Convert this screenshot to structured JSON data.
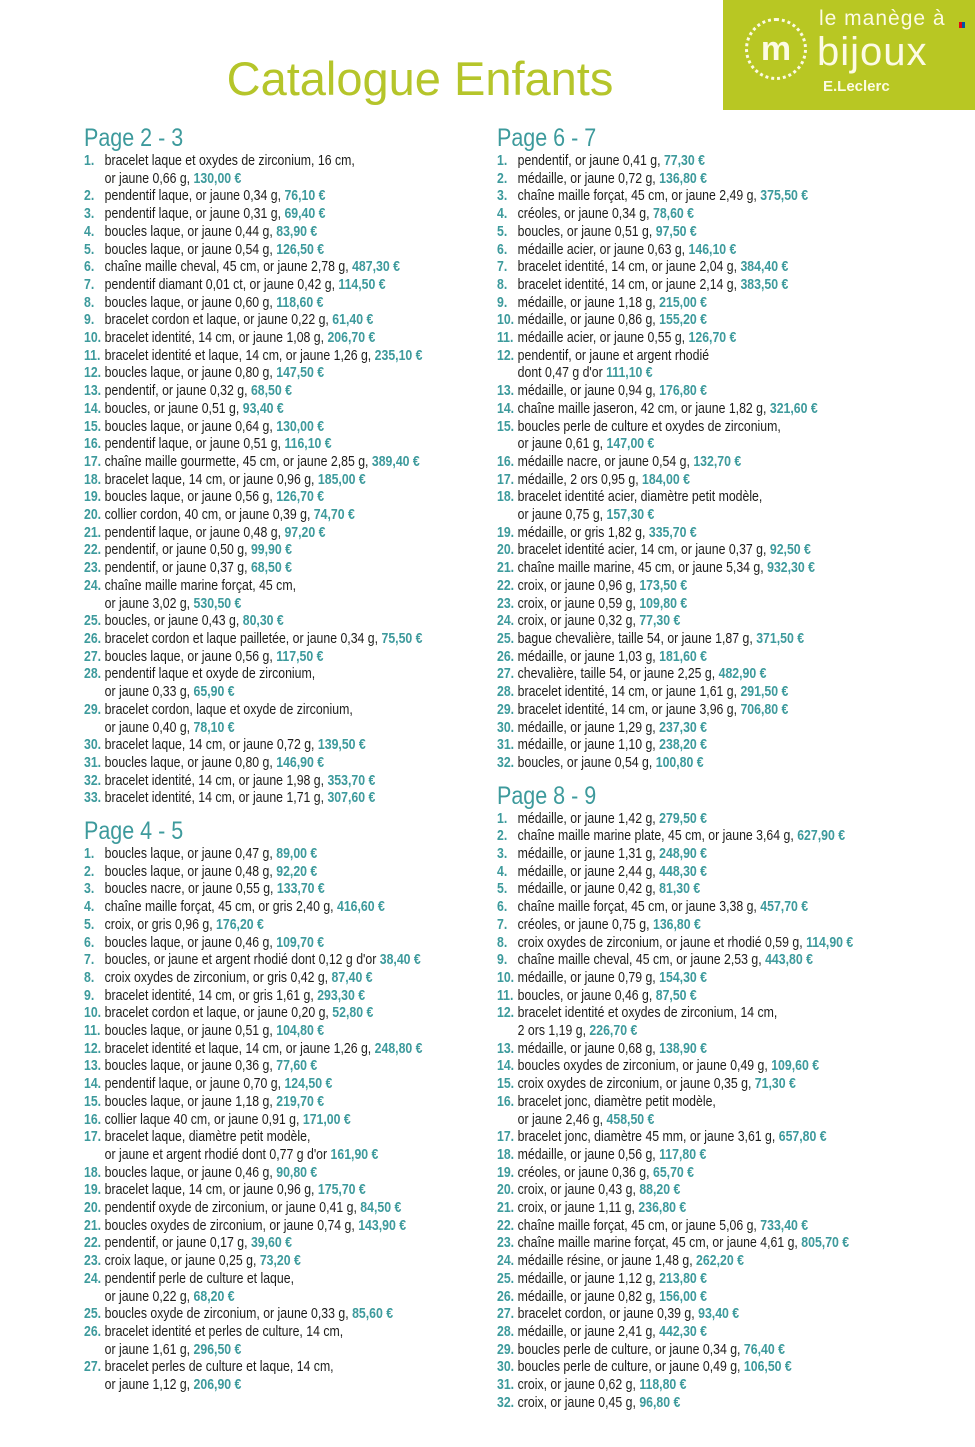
{
  "logo": {
    "line1": "le manège à",
    "line2": "bijoux",
    "line3": "E.Leclerc",
    "emblem": "m",
    "color": "#b8c723"
  },
  "title": "Catalogue Enfants",
  "columns": [
    [
      {
        "heading": "Page 2 - 3",
        "items": [
          {
            "n": "1.",
            "text": "bracelet laque et oxydes de zirconium, 16 cm,",
            "cont": "or jaune 0,66 g,",
            "price": "130,00 €"
          },
          {
            "n": "2.",
            "text": "pendentif laque, or jaune 0,34 g,",
            "price": "76,10 €"
          },
          {
            "n": "3.",
            "text": "pendentif laque, or jaune 0,31 g,",
            "price": "69,40 €"
          },
          {
            "n": "4.",
            "text": "boucles laque, or jaune 0,44 g,",
            "price": "83,90 €"
          },
          {
            "n": "5.",
            "text": "boucles laque, or jaune 0,54 g,",
            "price": "126,50 €"
          },
          {
            "n": "6.",
            "text": "chaîne maille cheval, 45 cm, or jaune 2,78 g,",
            "price": "487,30 €"
          },
          {
            "n": "7.",
            "text": "pendentif diamant 0,01 ct, or jaune 0,42 g,",
            "price": "114,50 €"
          },
          {
            "n": "8.",
            "text": "boucles laque, or jaune 0,60 g,",
            "price": "118,60 €"
          },
          {
            "n": "9.",
            "text": "bracelet cordon et laque, or jaune 0,22 g,",
            "price": "61,40 €"
          },
          {
            "n": "10.",
            "text": "bracelet identité, 14 cm, or jaune 1,08 g,",
            "price": "206,70 €"
          },
          {
            "n": "11.",
            "text": "bracelet identité et laque, 14 cm, or jaune 1,26 g,",
            "price": "235,10 €"
          },
          {
            "n": "12.",
            "text": "boucles laque, or jaune 0,80 g,",
            "price": "147,50 €"
          },
          {
            "n": "13.",
            "text": "pendentif, or jaune 0,32 g,",
            "price": "68,50 €"
          },
          {
            "n": "14.",
            "text": "boucles, or jaune 0,51 g,",
            "price": "93,40 €"
          },
          {
            "n": "15.",
            "text": "boucles laque, or jaune 0,64 g,",
            "price": "130,00 €"
          },
          {
            "n": "16.",
            "text": "pendentif laque, or jaune 0,51 g,",
            "price": "116,10 €"
          },
          {
            "n": "17.",
            "text": "chaîne maille gourmette, 45 cm, or jaune 2,85 g,",
            "price": "389,40 €"
          },
          {
            "n": "18.",
            "text": "bracelet laque, 14 cm, or jaune 0,96 g,",
            "price": "185,00 €"
          },
          {
            "n": "19.",
            "text": "boucles laque, or jaune 0,56 g,",
            "price": "126,70 €"
          },
          {
            "n": "20.",
            "text": "collier cordon, 40 cm, or jaune 0,39 g,",
            "price": "74,70 €"
          },
          {
            "n": "21.",
            "text": "pendentif laque, or jaune 0,48 g,",
            "price": "97,20 €"
          },
          {
            "n": "22.",
            "text": "pendentif, or jaune 0,50 g,",
            "price": "99,90 €"
          },
          {
            "n": "23.",
            "text": "pendentif, or jaune 0,37 g,",
            "price": "68,50 €"
          },
          {
            "n": "24.",
            "text": "chaîne maille marine forçat, 45 cm,",
            "cont": "or jaune 3,02 g,",
            "price": "530,50 €"
          },
          {
            "n": "25.",
            "text": "boucles, or jaune 0,43 g,",
            "price": "80,30 €"
          },
          {
            "n": "26.",
            "text": "bracelet cordon et laque pailletée, or jaune 0,34 g,",
            "price": "75,50 €"
          },
          {
            "n": "27.",
            "text": "boucles laque, or jaune 0,56 g,",
            "price": "117,50 €"
          },
          {
            "n": "28.",
            "text": "pendentif laque et oxyde de zirconium,",
            "cont": "or jaune 0,33 g,",
            "price": "65,90 €"
          },
          {
            "n": "29.",
            "text": "bracelet cordon, laque et oxyde de zirconium,",
            "cont": "or jaune 0,40 g,",
            "price": "78,10 €"
          },
          {
            "n": "30.",
            "text": "bracelet laque, 14 cm, or jaune 0,72 g,",
            "price": "139,50 €"
          },
          {
            "n": "31.",
            "text": "boucles laque, or jaune 0,80 g,",
            "price": "146,90 €"
          },
          {
            "n": "32.",
            "text": "bracelet identité, 14 cm, or jaune 1,98 g,",
            "price": "353,70 €"
          },
          {
            "n": "33.",
            "text": "bracelet identité, 14 cm, or jaune 1,71 g,",
            "price": "307,60 €"
          }
        ]
      },
      {
        "heading": "Page 4 - 5",
        "items": [
          {
            "n": "1.",
            "text": "boucles laque, or jaune 0,47 g,",
            "price": "89,00 €"
          },
          {
            "n": "2.",
            "text": "boucles laque, or jaune 0,48 g,",
            "price": "92,20 €"
          },
          {
            "n": "3.",
            "text": "boucles nacre, or jaune 0,55 g,",
            "price": "133,70 €"
          },
          {
            "n": "4.",
            "text": "chaîne maille forçat, 45 cm, or gris 2,40 g,",
            "price": "416,60 €"
          },
          {
            "n": "5.",
            "text": "croix, or gris 0,96 g,",
            "price": "176,20 €"
          },
          {
            "n": "6.",
            "text": "boucles laque, or jaune 0,46 g,",
            "price": "109,70 €"
          },
          {
            "n": "7.",
            "text": "boucles, or jaune et argent rhodié dont 0,12 g d'or",
            "price": "38,40 €"
          },
          {
            "n": "8.",
            "text": "croix oxydes de zirconium, or gris 0,42 g,",
            "price": "87,40 €"
          },
          {
            "n": "9.",
            "text": "bracelet identité, 14 cm, or gris 1,61 g,",
            "price": "293,30 €"
          },
          {
            "n": "10.",
            "text": "bracelet cordon et laque, or jaune 0,20 g,",
            "price": "52,80 €"
          },
          {
            "n": "11.",
            "text": "boucles laque, or jaune 0,51 g,",
            "price": "104,80 €"
          },
          {
            "n": "12.",
            "text": "bracelet identité et laque, 14 cm, or jaune 1,26 g,",
            "price": "248,80 €"
          },
          {
            "n": "13.",
            "text": "boucles laque, or jaune 0,36 g,",
            "price": "77,60 €"
          },
          {
            "n": "14.",
            "text": "pendentif laque, or jaune 0,70 g,",
            "price": "124,50 €"
          },
          {
            "n": "15.",
            "text": "boucles laque, or jaune 1,18 g,",
            "price": "219,70 €"
          },
          {
            "n": "16.",
            "text": "collier laque 40 cm, or jaune 0,91 g,",
            "price": "171,00 €"
          },
          {
            "n": "17.",
            "text": "bracelet laque, diamètre petit modèle,",
            "cont": "or jaune et argent rhodié dont 0,77 g d'or",
            "price": "161,90 €"
          },
          {
            "n": "18.",
            "text": "boucles laque, or jaune 0,46 g,",
            "price": "90,80 €"
          },
          {
            "n": "19.",
            "text": "bracelet laque, 14 cm, or jaune 0,96 g,",
            "price": "175,70 €"
          },
          {
            "n": "20.",
            "text": "pendentif oxyde de zirconium, or jaune 0,41 g,",
            "price": "84,50 €"
          },
          {
            "n": "21.",
            "text": "boucles oxydes de zirconium, or jaune 0,74 g,",
            "price": "143,90 €"
          },
          {
            "n": "22.",
            "text": "pendentif, or jaune 0,17 g,",
            "price": "39,60 €"
          },
          {
            "n": "23.",
            "text": "croix laque, or jaune 0,25 g,",
            "price": "73,20 €"
          },
          {
            "n": "24.",
            "text": "pendentif perle de culture et laque,",
            "cont": "or jaune 0,22 g,",
            "price": "68,20 €"
          },
          {
            "n": "25.",
            "text": "boucles oxyde de zirconium, or jaune 0,33 g,",
            "price": "85,60 €"
          },
          {
            "n": "26.",
            "text": "bracelet identité et perles de culture, 14 cm,",
            "cont": "or jaune 1,61 g,",
            "price": "296,50 €"
          },
          {
            "n": "27.",
            "text": "bracelet perles de culture et laque, 14 cm,",
            "cont": "or jaune 1,12 g,",
            "price": "206,90 €"
          }
        ]
      }
    ],
    [
      {
        "heading": "Page 6 - 7",
        "items": [
          {
            "n": "1.",
            "text": "pendentif, or jaune 0,41 g,",
            "price": "77,30 €"
          },
          {
            "n": "2.",
            "text": "médaille, or jaune 0,72 g,",
            "price": "136,80 €"
          },
          {
            "n": "3.",
            "text": "chaîne maille forçat, 45 cm, or jaune 2,49 g,",
            "price": "375,50 €"
          },
          {
            "n": "4.",
            "text": "créoles, or jaune 0,34 g,",
            "price": "78,60 €"
          },
          {
            "n": "5.",
            "text": "boucles, or jaune 0,51 g,",
            "price": "97,50 €"
          },
          {
            "n": "6.",
            "text": "médaille acier, or jaune 0,63 g,",
            "price": "146,10 €"
          },
          {
            "n": "7.",
            "text": "bracelet identité, 14 cm, or jaune 2,04 g,",
            "price": "384,40 €"
          },
          {
            "n": "8.",
            "text": "bracelet identité, 14 cm, or jaune 2,14 g,",
            "price": "383,50 €"
          },
          {
            "n": "9.",
            "text": "médaille, or jaune 1,18 g,",
            "price": "215,00 €"
          },
          {
            "n": "10.",
            "text": "médaille, or jaune 0,86 g,",
            "price": "155,20 €"
          },
          {
            "n": "11.",
            "text": "médaille acier, or jaune 0,55 g,",
            "price": "126,70 €"
          },
          {
            "n": "12.",
            "text": "pendentif, or jaune et argent rhodié",
            "cont": "dont 0,47 g d'or",
            "price": "111,10 €"
          },
          {
            "n": "13.",
            "text": "médaille, or jaune 0,94 g,",
            "price": "176,80 €"
          },
          {
            "n": "14.",
            "text": "chaîne maille jaseron, 42 cm, or jaune 1,82 g,",
            "price": "321,60 €"
          },
          {
            "n": "15.",
            "text": "boucles perle de culture et oxydes de zirconium,",
            "cont": "or jaune 0,61 g,",
            "price": "147,00 €"
          },
          {
            "n": "16.",
            "text": "médaille nacre, or jaune 0,54 g,",
            "price": "132,70 €"
          },
          {
            "n": "17.",
            "text": "médaille, 2 ors 0,95 g,",
            "price": "184,00 €"
          },
          {
            "n": "18.",
            "text": "bracelet identité acier, diamètre petit modèle,",
            "cont": "or jaune 0,75 g,",
            "price": "157,30 €"
          },
          {
            "n": "19.",
            "text": "médaille, or gris 1,82 g,",
            "price": "335,70 €"
          },
          {
            "n": "20.",
            "text": "bracelet identité acier, 14 cm, or jaune 0,37 g,",
            "price": "92,50 €"
          },
          {
            "n": "21.",
            "text": "chaîne maille marine, 45 cm, or jaune 5,34 g,",
            "price": "932,30 €"
          },
          {
            "n": "22.",
            "text": "croix, or jaune 0,96 g,",
            "price": "173,50 €"
          },
          {
            "n": "23.",
            "text": "croix, or jaune 0,59 g,",
            "price": "109,80 €"
          },
          {
            "n": "24.",
            "text": "croix, or jaune 0,32 g,",
            "price": "77,30 €"
          },
          {
            "n": "25.",
            "text": "bague chevalière, taille 54, or jaune 1,87 g,",
            "price": "371,50 €"
          },
          {
            "n": "26.",
            "text": "médaille, or jaune 1,03 g,",
            "price": "181,60 €"
          },
          {
            "n": "27.",
            "text": "chevalière, taille 54, or jaune 2,25 g,",
            "price": "482,90 €"
          },
          {
            "n": "28.",
            "text": "bracelet identité, 14 cm, or jaune 1,61 g,",
            "price": "291,50 €"
          },
          {
            "n": "29.",
            "text": "bracelet identité, 14 cm, or jaune 3,96 g,",
            "price": "706,80 €"
          },
          {
            "n": "30.",
            "text": "médaille, or jaune 1,29 g,",
            "price": "237,30 €"
          },
          {
            "n": "31.",
            "text": "médaille, or jaune 1,10 g,",
            "price": "238,20 €"
          },
          {
            "n": "32.",
            "text": "boucles, or jaune 0,54 g,",
            "price": "100,80 €"
          }
        ]
      },
      {
        "heading": "Page 8 - 9",
        "items": [
          {
            "n": "1.",
            "text": "médaille, or jaune 1,42 g,",
            "price": "279,50 €"
          },
          {
            "n": "2.",
            "text": "chaîne maille marine plate, 45 cm, or jaune 3,64 g,",
            "price": "627,90 €"
          },
          {
            "n": "3.",
            "text": "médaille, or jaune 1,31 g,",
            "price": "248,90 €"
          },
          {
            "n": "4.",
            "text": "médaille, or jaune 2,44 g,",
            "price": "448,30 €"
          },
          {
            "n": "5.",
            "text": "médaille, or jaune 0,42 g,",
            "price": "81,30 €"
          },
          {
            "n": "6.",
            "text": "chaîne maille forçat, 45 cm, or jaune 3,38 g,",
            "price": "457,70 €"
          },
          {
            "n": "7.",
            "text": "créoles, or jaune 0,75 g,",
            "price": "136,80 €"
          },
          {
            "n": "8.",
            "text": "croix oxydes de zirconium, or jaune et rhodié 0,59 g,",
            "price": "114,90 €"
          },
          {
            "n": "9.",
            "text": "chaîne maille cheval, 45 cm, or jaune 2,53 g,",
            "price": "443,80 €"
          },
          {
            "n": "10.",
            "text": "médaille, or jaune 0,79 g,",
            "price": "154,30 €"
          },
          {
            "n": "11.",
            "text": "boucles, or jaune 0,46 g,",
            "price": "87,50 €"
          },
          {
            "n": "12.",
            "text": "bracelet identité et oxydes de zirconium, 14 cm,",
            "cont": "2 ors 1,19 g,",
            "price": "226,70 €"
          },
          {
            "n": "13.",
            "text": "médaille, or jaune 0,68 g,",
            "price": "138,90 €"
          },
          {
            "n": "14.",
            "text": "boucles oxydes de zirconium, or jaune 0,49 g,",
            "price": "109,60 €"
          },
          {
            "n": "15.",
            "text": "croix oxydes de zirconium, or jaune 0,35 g,",
            "price": "71,30 €"
          },
          {
            "n": "16.",
            "text": "bracelet jonc, diamètre petit modèle,",
            "cont": "or jaune 2,46 g,",
            "price": "458,50 €"
          },
          {
            "n": "17.",
            "text": "bracelet jonc, diamètre 45 mm, or jaune 3,61 g,",
            "price": "657,80 €"
          },
          {
            "n": "18.",
            "text": "médaille, or jaune 0,56 g,",
            "price": "117,80 €"
          },
          {
            "n": "19.",
            "text": "créoles, or jaune 0,36 g,",
            "price": "65,70 €"
          },
          {
            "n": "20.",
            "text": "croix, or jaune 0,43 g,",
            "price": "88,20 €"
          },
          {
            "n": "21.",
            "text": "croix, or jaune 1,11 g,",
            "price": "236,80 €"
          },
          {
            "n": "22.",
            "text": "chaîne maille forçat, 45 cm, or jaune 5,06 g,",
            "price": "733,40 €"
          },
          {
            "n": "23.",
            "text": "chaîne maille marine forçat, 45 cm, or jaune 4,61 g,",
            "price": "805,70 €"
          },
          {
            "n": "24.",
            "text": "médaille résine, or jaune 1,48 g,",
            "price": "262,20 €"
          },
          {
            "n": "25.",
            "text": "médaille, or jaune 1,12 g,",
            "price": "213,80 €"
          },
          {
            "n": "26.",
            "text": "médaille, or jaune 0,82 g,",
            "price": "156,00 €"
          },
          {
            "n": "27.",
            "text": "bracelet cordon, or jaune 0,39 g,",
            "price": "93,40 €"
          },
          {
            "n": "28.",
            "text": "médaille, or jaune 2,41 g,",
            "price": "442,30 €"
          },
          {
            "n": "29.",
            "text": "boucles perle de culture, or jaune 0,34 g,",
            "price": "76,40 €"
          },
          {
            "n": "30.",
            "text": "boucles perle de culture, or jaune 0,49 g,",
            "price": "106,50 €"
          },
          {
            "n": "31.",
            "text": "croix, or jaune 0,62 g,",
            "price": "118,80 €"
          },
          {
            "n": "32.",
            "text": "croix, or jaune 0,45 g,",
            "price": "96,80 €"
          }
        ]
      }
    ]
  ]
}
